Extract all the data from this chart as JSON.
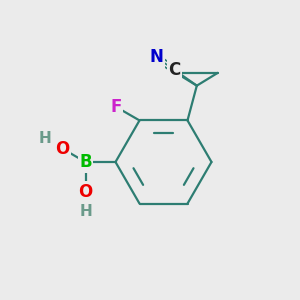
{
  "bg_color": "#ebebeb",
  "bond_color": "#2d7d72",
  "bond_width": 1.6,
  "atom_colors": {
    "B": "#00bb00",
    "O": "#ee0000",
    "H": "#6a9a8a",
    "F": "#cc22cc",
    "N": "#0000cc",
    "C": "#222222"
  },
  "font_size": 12,
  "font_size_h": 10
}
